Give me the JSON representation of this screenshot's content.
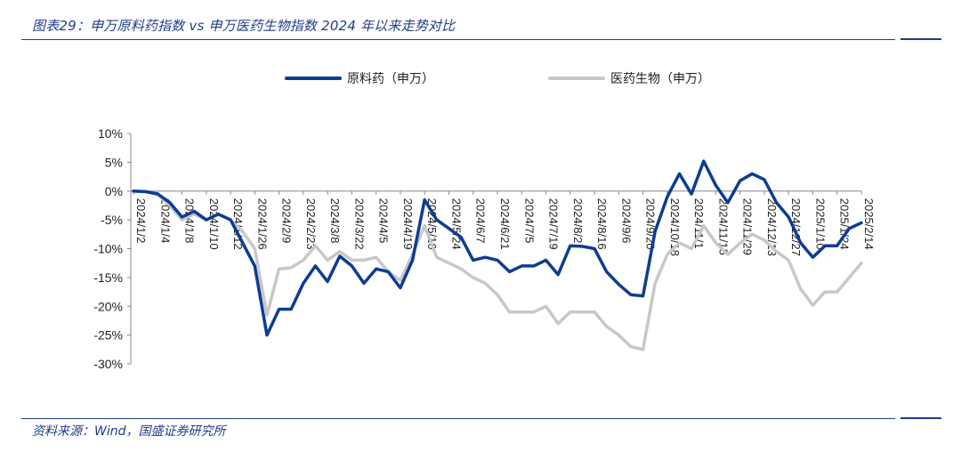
{
  "header": {
    "title": "图表29：申万原料药指数 vs 申万医药生物指数 2024 年以来走势对比"
  },
  "footer": {
    "source": "资料来源：Wind，国盛证券研究所"
  },
  "colors": {
    "accent": "#1f3c88",
    "series_1": "#0c3d91",
    "series_2": "#c8c8c8",
    "axis": "#888888"
  },
  "chart_data": {
    "type": "line",
    "title": "",
    "xlabel": "",
    "ylabel": "",
    "ylim": [
      -0.3,
      0.1
    ],
    "y_ticks": [
      0.1,
      0.05,
      0.0,
      -0.05,
      -0.1,
      -0.15,
      -0.2,
      -0.25,
      -0.3
    ],
    "y_tick_labels": [
      "10%",
      "5%",
      "0%",
      "-5%",
      "-10%",
      "-15%",
      "-20%",
      "-25%",
      "-30%"
    ],
    "grid": false,
    "legend_position": "top-center",
    "x_tick_labels": [
      "2024/1/2",
      "2024/1/4",
      "2024/1/8",
      "2024/1/10",
      "2024/1/12",
      "2024/1/26",
      "2024/2/9",
      "2024/2/23",
      "2024/3/8",
      "2024/3/22",
      "2024/4/5",
      "2024/4/19",
      "2024/5/10",
      "2024/5/24",
      "2024/6/7",
      "2024/6/21",
      "2024/7/5",
      "2024/7/19",
      "2024/8/2",
      "2024/8/16",
      "2024/9/6",
      "2024/9/20",
      "2024/10/18",
      "2024/11/1",
      "2024/11/15",
      "2024/11/29",
      "2024/12/13",
      "2024/12/27",
      "2025/1/10",
      "2025/1/24",
      "2025/2/14"
    ],
    "x_tick_positions": [
      0,
      2,
      4,
      6,
      8,
      10,
      12,
      14,
      16,
      18,
      20,
      22,
      24,
      26,
      28,
      30,
      32,
      34,
      36,
      38,
      40,
      42,
      44,
      46,
      48,
      50,
      52,
      54,
      56,
      58,
      60
    ],
    "x_count": 61,
    "series": [
      {
        "name": "原料药（申万）",
        "color": "#0c3d91",
        "values": [
          0.0,
          -0.001,
          -0.005,
          -0.02,
          -0.045,
          -0.035,
          -0.05,
          -0.04,
          -0.05,
          -0.09,
          -0.13,
          -0.25,
          -0.205,
          -0.205,
          -0.16,
          -0.13,
          -0.157,
          -0.113,
          -0.13,
          -0.16,
          -0.135,
          -0.14,
          -0.168,
          -0.12,
          -0.015,
          -0.05,
          -0.065,
          -0.08,
          -0.12,
          -0.115,
          -0.12,
          -0.14,
          -0.13,
          -0.13,
          -0.12,
          -0.145,
          -0.095,
          -0.096,
          -0.1,
          -0.14,
          -0.162,
          -0.18,
          -0.182,
          -0.07,
          -0.01,
          0.03,
          -0.005,
          0.052,
          0.01,
          -0.02,
          0.018,
          0.03,
          0.02,
          -0.02,
          -0.045,
          -0.09,
          -0.115,
          -0.095,
          -0.095,
          -0.065,
          -0.055
        ]
      },
      {
        "name": "医药生物（申万）",
        "color": "#c8c8c8",
        "values": [
          0.0,
          -0.001,
          -0.006,
          -0.025,
          -0.05,
          -0.04,
          -0.05,
          -0.04,
          -0.05,
          -0.07,
          -0.1,
          -0.215,
          -0.135,
          -0.133,
          -0.12,
          -0.095,
          -0.12,
          -0.105,
          -0.12,
          -0.12,
          -0.115,
          -0.14,
          -0.155,
          -0.11,
          -0.06,
          -0.115,
          -0.125,
          -0.135,
          -0.15,
          -0.16,
          -0.18,
          -0.21,
          -0.21,
          -0.21,
          -0.2,
          -0.23,
          -0.21,
          -0.21,
          -0.21,
          -0.235,
          -0.25,
          -0.27,
          -0.275,
          -0.16,
          -0.11,
          -0.09,
          -0.1,
          -0.06,
          -0.09,
          -0.11,
          -0.09,
          -0.075,
          -0.085,
          -0.105,
          -0.12,
          -0.17,
          -0.198,
          -0.175,
          -0.175,
          -0.15,
          -0.125
        ]
      }
    ]
  }
}
